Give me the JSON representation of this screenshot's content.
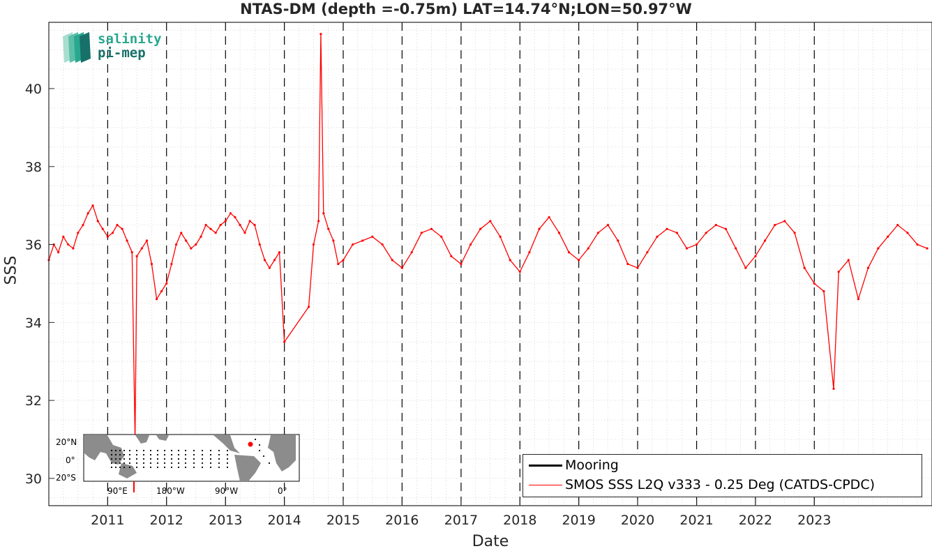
{
  "chart_data": {
    "type": "line",
    "title": "NTAS-DM (depth =-0.75m) LAT=14.74°N;LON=50.97°W",
    "xlabel": "Date",
    "ylabel": "SSS",
    "xlim": [
      "2010-01-01",
      "2024-12-31"
    ],
    "ylim": [
      29.3,
      41.7
    ],
    "yticks": [
      30,
      32,
      34,
      36,
      38,
      40
    ],
    "xticks": [
      "2011",
      "2012",
      "2013",
      "2014",
      "2015",
      "2016",
      "2017",
      "2018",
      "2019",
      "2020",
      "2021",
      "2022",
      "2023"
    ],
    "grid": "minor dotted",
    "year_dividers": "dashed",
    "legend_position": "bottom-right",
    "legend": [
      {
        "name": "Mooring",
        "color": "#000000"
      },
      {
        "name": "SMOS SSS L2Q v333 - 0.25 Deg (CATDS-CPDC)",
        "color": "#ff0000"
      }
    ],
    "series": [
      {
        "name": "Mooring",
        "color": "#000000",
        "points": []
      },
      {
        "name": "SMOS SSS L2Q v333 - 0.25 Deg (CATDS-CPDC)",
        "color": "#ff0000",
        "points": [
          [
            "2010-01-01",
            35.6
          ],
          [
            "2010-02-01",
            36.0
          ],
          [
            "2010-03-01",
            35.8
          ],
          [
            "2010-04-01",
            36.2
          ],
          [
            "2010-05-01",
            36.0
          ],
          [
            "2010-06-01",
            35.9
          ],
          [
            "2010-07-01",
            36.3
          ],
          [
            "2010-08-01",
            36.5
          ],
          [
            "2010-09-01",
            36.8
          ],
          [
            "2010-10-01",
            37.0
          ],
          [
            "2010-11-01",
            36.6
          ],
          [
            "2010-12-01",
            36.4
          ],
          [
            "2011-01-01",
            36.2
          ],
          [
            "2011-02-01",
            36.3
          ],
          [
            "2011-03-01",
            36.5
          ],
          [
            "2011-04-01",
            36.4
          ],
          [
            "2011-05-01",
            36.1
          ],
          [
            "2011-06-01",
            35.8
          ],
          [
            "2011-06-20",
            31.0
          ],
          [
            "2011-07-01",
            35.7
          ],
          [
            "2011-08-01",
            35.9
          ],
          [
            "2011-09-01",
            36.1
          ],
          [
            "2011-10-01",
            35.5
          ],
          [
            "2011-11-01",
            34.6
          ],
          [
            "2011-12-01",
            34.8
          ],
          [
            "2012-01-01",
            35.0
          ],
          [
            "2012-02-01",
            35.5
          ],
          [
            "2012-03-01",
            36.0
          ],
          [
            "2012-04-01",
            36.3
          ],
          [
            "2012-05-01",
            36.1
          ],
          [
            "2012-06-01",
            35.9
          ],
          [
            "2012-07-01",
            36.0
          ],
          [
            "2012-08-01",
            36.2
          ],
          [
            "2012-09-01",
            36.5
          ],
          [
            "2012-10-01",
            36.4
          ],
          [
            "2012-11-01",
            36.3
          ],
          [
            "2012-12-01",
            36.5
          ],
          [
            "2013-01-01",
            36.6
          ],
          [
            "2013-02-01",
            36.8
          ],
          [
            "2013-03-01",
            36.7
          ],
          [
            "2013-04-01",
            36.5
          ],
          [
            "2013-05-01",
            36.3
          ],
          [
            "2013-06-01",
            36.6
          ],
          [
            "2013-07-01",
            36.5
          ],
          [
            "2013-08-01",
            36.0
          ],
          [
            "2013-09-01",
            35.6
          ],
          [
            "2013-10-01",
            35.4
          ],
          [
            "2013-11-01",
            35.6
          ],
          [
            "2013-12-01",
            35.8
          ],
          [
            "2014-01-01",
            33.5
          ],
          [
            "2014-06-01",
            34.4
          ],
          [
            "2014-07-01",
            36.0
          ],
          [
            "2014-08-01",
            36.6
          ],
          [
            "2014-08-15",
            41.4
          ],
          [
            "2014-09-01",
            36.8
          ],
          [
            "2014-10-01",
            36.4
          ],
          [
            "2014-11-01",
            36.1
          ],
          [
            "2014-12-01",
            35.5
          ],
          [
            "2015-01-01",
            35.6
          ],
          [
            "2015-03-01",
            36.0
          ],
          [
            "2015-05-01",
            36.1
          ],
          [
            "2015-07-01",
            36.2
          ],
          [
            "2015-09-01",
            36.0
          ],
          [
            "2015-11-01",
            35.6
          ],
          [
            "2016-01-01",
            35.4
          ],
          [
            "2016-03-01",
            35.8
          ],
          [
            "2016-05-01",
            36.3
          ],
          [
            "2016-07-01",
            36.4
          ],
          [
            "2016-09-01",
            36.2
          ],
          [
            "2016-11-01",
            35.7
          ],
          [
            "2017-01-01",
            35.5
          ],
          [
            "2017-03-01",
            36.0
          ],
          [
            "2017-05-01",
            36.4
          ],
          [
            "2017-07-01",
            36.6
          ],
          [
            "2017-09-01",
            36.2
          ],
          [
            "2017-11-01",
            35.6
          ],
          [
            "2018-01-01",
            35.3
          ],
          [
            "2018-03-01",
            35.8
          ],
          [
            "2018-05-01",
            36.4
          ],
          [
            "2018-07-01",
            36.7
          ],
          [
            "2018-09-01",
            36.3
          ],
          [
            "2018-11-01",
            35.8
          ],
          [
            "2019-01-01",
            35.6
          ],
          [
            "2019-03-01",
            35.9
          ],
          [
            "2019-05-01",
            36.3
          ],
          [
            "2019-07-01",
            36.5
          ],
          [
            "2019-09-01",
            36.1
          ],
          [
            "2019-11-01",
            35.5
          ],
          [
            "2020-01-01",
            35.4
          ],
          [
            "2020-03-01",
            35.8
          ],
          [
            "2020-05-01",
            36.2
          ],
          [
            "2020-07-01",
            36.4
          ],
          [
            "2020-09-01",
            36.3
          ],
          [
            "2020-11-01",
            35.9
          ],
          [
            "2021-01-01",
            36.0
          ],
          [
            "2021-03-01",
            36.3
          ],
          [
            "2021-05-01",
            36.5
          ],
          [
            "2021-07-01",
            36.4
          ],
          [
            "2021-09-01",
            35.9
          ],
          [
            "2021-11-01",
            35.4
          ],
          [
            "2022-01-01",
            35.7
          ],
          [
            "2022-03-01",
            36.1
          ],
          [
            "2022-05-01",
            36.5
          ],
          [
            "2022-07-01",
            36.6
          ],
          [
            "2022-09-01",
            36.3
          ],
          [
            "2022-11-01",
            35.4
          ],
          [
            "2023-01-01",
            35.0
          ],
          [
            "2023-03-01",
            34.8
          ],
          [
            "2023-05-01",
            32.3
          ],
          [
            "2023-06-01",
            35.3
          ],
          [
            "2023-08-01",
            35.6
          ],
          [
            "2023-10-01",
            34.6
          ],
          [
            "2023-12-01",
            35.4
          ],
          [
            "2024-02-01",
            35.9
          ],
          [
            "2024-04-01",
            36.2
          ],
          [
            "2024-06-01",
            36.5
          ],
          [
            "2024-08-01",
            36.3
          ],
          [
            "2024-10-01",
            36.0
          ],
          [
            "2024-12-01",
            35.9
          ]
        ]
      }
    ]
  },
  "logo": {
    "line1": "salinity",
    "line2": "pi-mep"
  },
  "inset_map": {
    "lat_labels": [
      "20°N",
      "0°",
      "20°S"
    ],
    "lon_labels": [
      "90°E",
      "180°W",
      "90°W",
      "0°"
    ],
    "colors": {
      "land": "#8c8c8c",
      "ocean": "#ffffff",
      "mooring": "#000000",
      "highlight": "#ff0000"
    }
  }
}
